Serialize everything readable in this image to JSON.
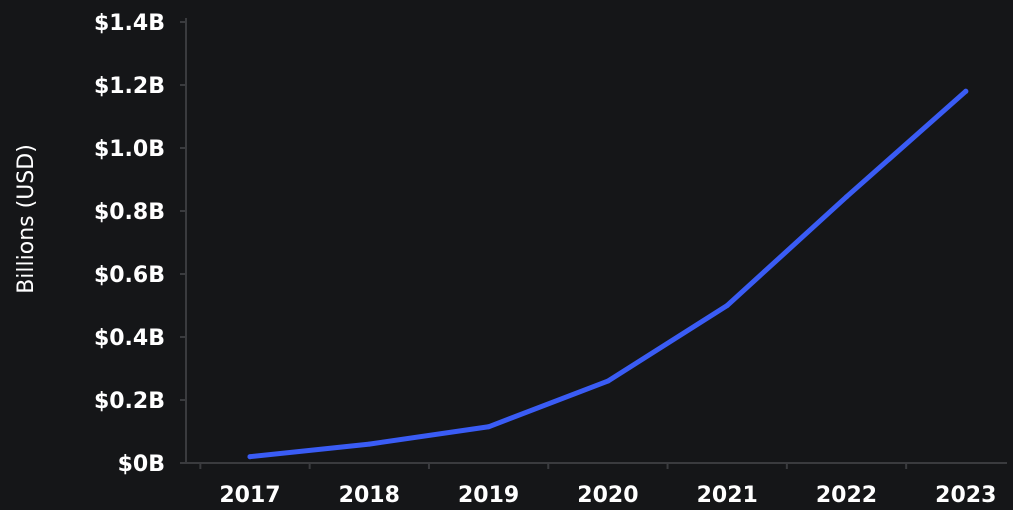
{
  "colors": {
    "background": "#151618",
    "line": "#3a5cf5",
    "axis": "#3a3b3e",
    "text": "#ffffff"
  },
  "chart_data": {
    "type": "line",
    "ylabel": "Billions (USD)",
    "xlabel": "",
    "title": "",
    "categories": [
      "2017",
      "2018",
      "2019",
      "2020",
      "2021",
      "2022",
      "2023"
    ],
    "series": [
      {
        "values": [
          0.02,
          0.06,
          0.115,
          0.26,
          0.5,
          0.845,
          1.18
        ]
      }
    ],
    "ylim": [
      0,
      1.4
    ],
    "yticks": [
      {
        "value": 0,
        "label": "$0B"
      },
      {
        "value": 0.2,
        "label": "$0.2B"
      },
      {
        "value": 0.4,
        "label": "$0.4B"
      },
      {
        "value": 0.6,
        "label": "$0.6B"
      },
      {
        "value": 0.8,
        "label": "$0.8B"
      },
      {
        "value": 1.0,
        "label": "$1.0B"
      },
      {
        "value": 1.2,
        "label": "$1.2B"
      },
      {
        "value": 1.4,
        "label": "$1.4B"
      }
    ],
    "grid": false,
    "legend": "none"
  }
}
